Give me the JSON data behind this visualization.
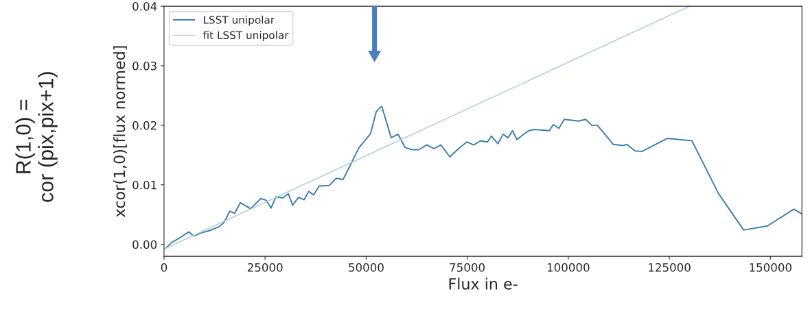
{
  "chart_data": {
    "type": "line",
    "xlabel": "Flux in e-",
    "ylabel": "xcor(1,0)[flux normed]",
    "annotations": [
      "R(1,0) =\ncor (pix,pix+1)"
    ],
    "xlim": [
      0,
      157800
    ],
    "ylim": [
      -0.002,
      0.04
    ],
    "xticks": [
      0,
      25000,
      50000,
      75000,
      100000,
      125000,
      150000
    ],
    "yticks": [
      {
        "value": 0,
        "label": "0.00"
      },
      {
        "value": 0.01,
        "label": "0.01"
      },
      {
        "value": 0.02,
        "label": "0.02"
      },
      {
        "value": 0.03,
        "label": "0.03"
      },
      {
        "value": 0.04,
        "label": "0.04"
      }
    ],
    "legend": "top left",
    "grid": false,
    "series": [
      {
        "name": "LSST unipolar",
        "color": "#3a7fb0",
        "x": [
          340,
          1870,
          3900,
          6100,
          7300,
          9500,
          11200,
          13760,
          14950,
          16300,
          17500,
          18850,
          21400,
          23950,
          25300,
          26500,
          27700,
          29400,
          30750,
          31800,
          33300,
          34650,
          35800,
          37000,
          38400,
          40900,
          42600,
          44300,
          46000,
          48200,
          51100,
          52500,
          53850,
          56200,
          57900,
          59600,
          61300,
          63000,
          65000,
          66800,
          68500,
          70700,
          72900,
          74900,
          76600,
          78300,
          80000,
          81000,
          82600,
          83900,
          85100,
          86200,
          87300,
          88800,
          90200,
          91600,
          95300,
          96300,
          97700,
          99000,
          102600,
          104300,
          105800,
          107200,
          109700,
          111100,
          113600,
          114500,
          116500,
          118200,
          124500,
          130600,
          137200,
          143400,
          149300,
          155800,
          157800
        ],
        "values": [
          -0.0007,
          0.0003,
          0.0011,
          0.0021,
          0.0014,
          0.002,
          0.0023,
          0.003,
          0.0038,
          0.0056,
          0.0052,
          0.007,
          0.006,
          0.0077,
          0.0074,
          0.0061,
          0.008,
          0.0078,
          0.0085,
          0.0066,
          0.0079,
          0.0075,
          0.0089,
          0.0083,
          0.0098,
          0.0099,
          0.0111,
          0.0109,
          0.0132,
          0.0162,
          0.0186,
          0.0223,
          0.0232,
          0.0179,
          0.0185,
          0.0163,
          0.0159,
          0.0159,
          0.0167,
          0.0161,
          0.0167,
          0.0147,
          0.0161,
          0.0172,
          0.0167,
          0.0174,
          0.0172,
          0.0182,
          0.0169,
          0.0185,
          0.0179,
          0.0191,
          0.0176,
          0.0184,
          0.0191,
          0.0193,
          0.0191,
          0.0201,
          0.0195,
          0.021,
          0.0207,
          0.021,
          0.02,
          0.02,
          0.018,
          0.0168,
          0.0166,
          0.0168,
          0.0157,
          0.0156,
          0.0178,
          0.0174,
          0.0085,
          0.0024,
          0.0031,
          0.0059,
          0.0051
        ]
      },
      {
        "name": "fit LSST unipolar",
        "color": "#b3cbe3",
        "x": [
          0,
          130000
        ],
        "values": [
          -0.0008,
          0.04
        ]
      }
    ]
  }
}
